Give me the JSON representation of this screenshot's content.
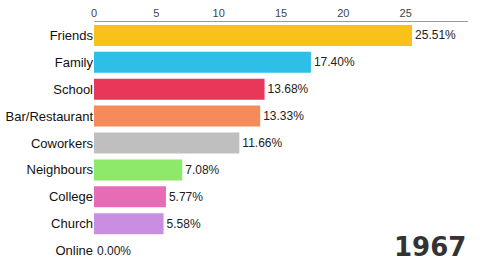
{
  "chart_data": {
    "type": "bar",
    "orientation": "horizontal",
    "categories": [
      "Friends",
      "Family",
      "School",
      "Bar/Restaurant",
      "Coworkers",
      "Neighbours",
      "College",
      "Church",
      "Online"
    ],
    "values": [
      25.51,
      17.4,
      13.68,
      13.33,
      11.66,
      7.08,
      5.77,
      5.58,
      0.0
    ],
    "value_labels": [
      "25.51%",
      "17.40%",
      "13.68%",
      "13.33%",
      "11.66%",
      "7.08%",
      "5.77%",
      "5.58%",
      "0.00%"
    ],
    "colors": [
      "#f9c21b",
      "#2ebfe8",
      "#e8385a",
      "#f58b5b",
      "#bfbfbf",
      "#8ee86a",
      "#e86cb5",
      "#c98ee0",
      "#4aa3df"
    ],
    "xlim": [
      0,
      30
    ],
    "xticks": [
      0,
      5,
      10,
      15,
      20,
      25
    ],
    "data_labels": true,
    "grid": false,
    "annotations": [
      {
        "text": "1967"
      }
    ]
  }
}
